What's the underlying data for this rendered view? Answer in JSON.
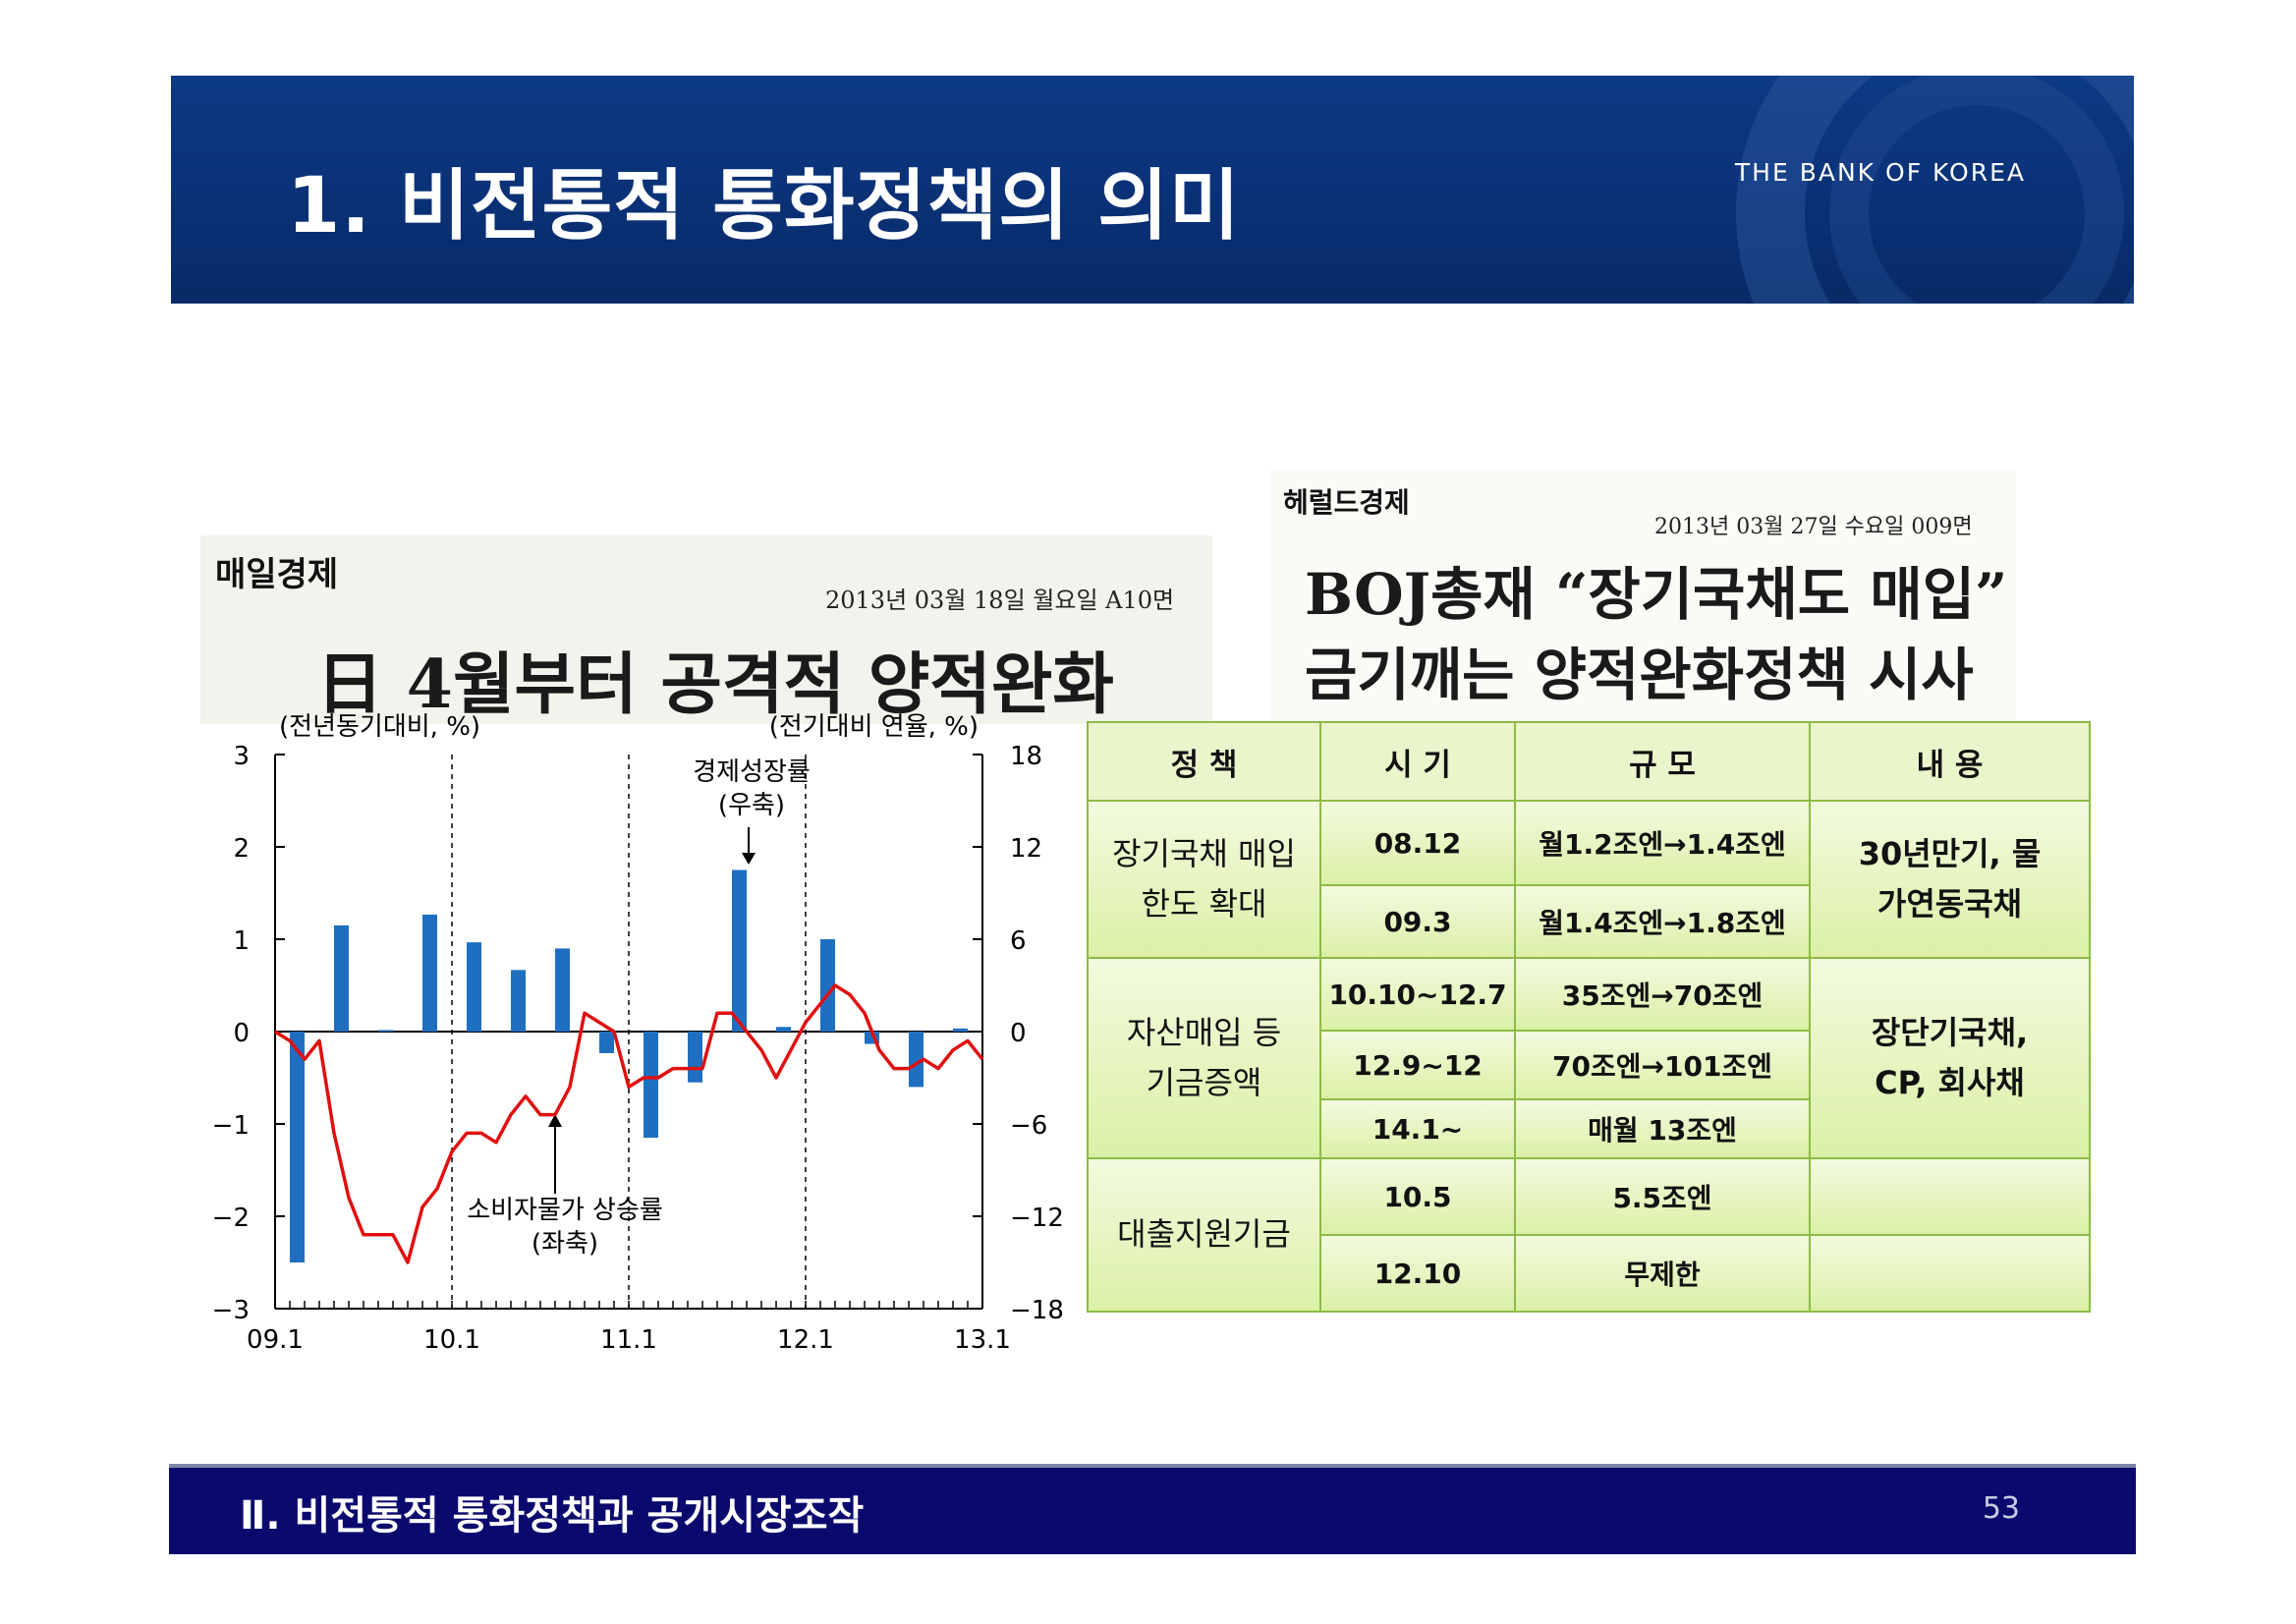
{
  "header": {
    "title": "1. 비전통적 통화정책의 의미",
    "brand": "THE BANK OF KOREA"
  },
  "footer": {
    "section_title": "Ⅱ. 비전통적 통화정책과 공개시장조작",
    "page_number": "53"
  },
  "clip_left": {
    "publication": "매일경제",
    "dateline": "2013년 03월 18일 월요일 A10면",
    "headline": "日 4월부터 공격적 양적완화"
  },
  "clip_right": {
    "publication": "헤럴드경제",
    "dateline": "2013년 03월 27일 수요일 009면",
    "headline_line1": "BOJ총재 “장기국채도 매입”",
    "headline_line2": "금기깨는 양적완화정책 시사"
  },
  "table": {
    "headers": [
      "정 책",
      "시 기",
      "규 모",
      "내 용"
    ],
    "groups": [
      {
        "policy": "장기국채 매입한도 확대",
        "rows": [
          {
            "period": "08.12",
            "scale": "월1.2조엔→1.4조엔"
          },
          {
            "period": "09.3",
            "scale": "월1.4조엔→1.8조엔"
          }
        ],
        "content": "30년만기, 물가연동국채"
      },
      {
        "policy": "자산매입 등 기금증액",
        "rows": [
          {
            "period": "10.10~12.7",
            "scale": "35조엔→70조엔"
          },
          {
            "period": "12.9~12",
            "scale": "70조엔→101조엔"
          },
          {
            "period": "14.1~",
            "scale": "매월 13조엔"
          }
        ],
        "content": "장단기국채, CP, 회사채"
      },
      {
        "policy": "대출지원기금",
        "rows": [
          {
            "period": "10.5",
            "scale": "5.5조엔"
          },
          {
            "period": "12.10",
            "scale": "무제한"
          }
        ],
        "content": ""
      }
    ]
  },
  "chart_data": {
    "type": "bar+line",
    "left_axis_unit": "(전년동기대비, %)",
    "right_axis_unit": "(전기대비 연율, %)",
    "left_ylim": [
      -3,
      3
    ],
    "right_ylim": [
      -18,
      18
    ],
    "left_ticks": [
      "3",
      "2",
      "1",
      "0",
      "−1",
      "−2",
      "−3"
    ],
    "right_ticks": [
      "18",
      "12",
      "6",
      "0",
      "−6",
      "−12",
      "−18"
    ],
    "x_tick_labels": [
      "09.1",
      "10.1",
      "11.1",
      "12.1",
      "13.1"
    ],
    "annotations": {
      "gdp": "경제성장률\n(우축)",
      "cpi": "소비자물가 상승률\n(좌축)"
    },
    "colors": {
      "bars": "#1f6fc1",
      "line": "#e01010"
    },
    "series": [
      {
        "name": "경제성장률",
        "axis": "right",
        "kind": "bar",
        "x": [
          "09.1",
          "09.2",
          "09.3",
          "09.4",
          "10.1",
          "10.2",
          "10.3",
          "10.4",
          "11.1",
          "11.2",
          "11.3",
          "11.4",
          "12.1",
          "12.2",
          "12.3",
          "12.4",
          "13.1"
        ],
        "values": [
          -15.0,
          6.9,
          0.1,
          7.6,
          5.8,
          4.0,
          5.4,
          -1.4,
          -6.9,
          -3.3,
          10.5,
          0.3,
          6.0,
          -0.8,
          -3.6,
          0.2,
          null
        ]
      },
      {
        "name": "소비자물가 상승률",
        "axis": "left",
        "kind": "line",
        "x_months": [
          "09.1",
          "09.2",
          "09.3",
          "09.4",
          "09.5",
          "09.6",
          "09.7",
          "09.8",
          "09.9",
          "09.10",
          "09.11",
          "09.12",
          "10.1",
          "10.2",
          "10.3",
          "10.4",
          "10.5",
          "10.6",
          "10.7",
          "10.8",
          "10.9",
          "10.10",
          "10.11",
          "10.12",
          "11.1",
          "11.2",
          "11.3",
          "11.4",
          "11.5",
          "11.6",
          "11.7",
          "11.8",
          "11.9",
          "11.10",
          "11.11",
          "11.12",
          "12.1",
          "12.2",
          "12.3",
          "12.4",
          "12.5",
          "12.6",
          "12.7",
          "12.8",
          "12.9",
          "12.10",
          "12.11",
          "12.12",
          "13.1"
        ],
        "values": [
          0.0,
          -0.1,
          -0.3,
          -0.1,
          -1.1,
          -1.8,
          -2.2,
          -2.2,
          -2.2,
          -2.5,
          -1.9,
          -1.7,
          -1.3,
          -1.1,
          -1.1,
          -1.2,
          -0.9,
          -0.7,
          -0.9,
          -0.9,
          -0.6,
          0.2,
          0.1,
          0.0,
          -0.6,
          -0.5,
          -0.5,
          -0.4,
          -0.4,
          -0.4,
          0.2,
          0.2,
          0.0,
          -0.2,
          -0.5,
          -0.2,
          0.1,
          0.3,
          0.5,
          0.4,
          0.2,
          -0.2,
          -0.4,
          -0.4,
          -0.3,
          -0.4,
          -0.2,
          -0.1,
          -0.3
        ]
      }
    ]
  }
}
